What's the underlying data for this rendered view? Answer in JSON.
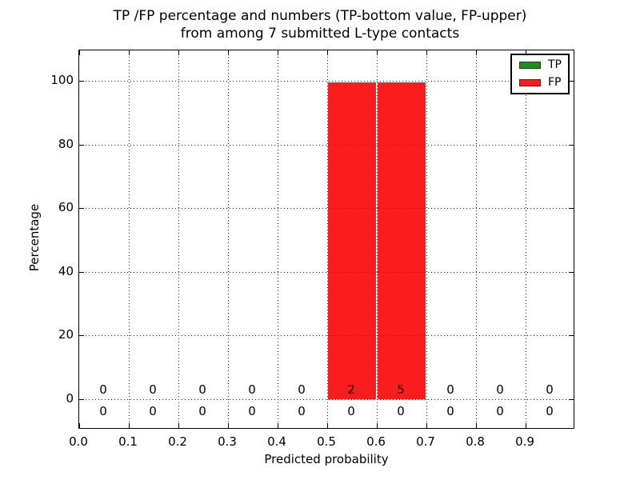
{
  "title": {
    "line1": "TP /FP percentage and numbers (TP-bottom value, FP-upper)",
    "line2": "from among 7 submitted L-type contacts"
  },
  "x_axis": {
    "label": "Predicted probability",
    "ticks": [
      "0.0",
      "0.1",
      "0.2",
      "0.3",
      "0.4",
      "0.5",
      "0.6",
      "0.7",
      "0.8",
      "0.9"
    ]
  },
  "y_axis": {
    "label": "Percentage",
    "ticks": [
      "0",
      "20",
      "40",
      "60",
      "80",
      "100"
    ]
  },
  "legend": {
    "position": "upper right",
    "items": [
      {
        "label": "TP",
        "color": "#228b22"
      },
      {
        "label": "FP",
        "color": "#fa1d1d"
      }
    ]
  },
  "annotations": {
    "fp_counts": [
      "0",
      "0",
      "0",
      "0",
      "0",
      "2",
      "5",
      "0",
      "0",
      "0"
    ],
    "tp_counts": [
      "0",
      "0",
      "0",
      "0",
      "0",
      "0",
      "0",
      "0",
      "0",
      "0"
    ]
  },
  "chart_data": {
    "type": "bar",
    "stacked": true,
    "title": "TP /FP percentage and numbers (TP-bottom value, FP-upper)\nfrom among 7 submitted L-type contacts",
    "xlabel": "Predicted probability",
    "ylabel": "Percentage",
    "xlim": [
      0.0,
      1.0
    ],
    "ylim": [
      -9.5,
      109.5
    ],
    "grid": "dotted, both axes, black",
    "legend_position": "upper right",
    "total_contacts": 7,
    "bin_width": 0.1,
    "bin_edges": [
      0.0,
      0.1,
      0.2,
      0.3,
      0.4,
      0.5,
      0.6,
      0.7,
      0.8,
      0.9,
      1.0
    ],
    "bin_centers": [
      0.05,
      0.15,
      0.25,
      0.35,
      0.45,
      0.55,
      0.65,
      0.75,
      0.85,
      0.95
    ],
    "series": [
      {
        "name": "TP",
        "color": "#228b22",
        "percent": [
          0,
          0,
          0,
          0,
          0,
          0,
          0,
          0,
          0,
          0
        ],
        "counts": [
          0,
          0,
          0,
          0,
          0,
          0,
          0,
          0,
          0,
          0
        ]
      },
      {
        "name": "FP",
        "color": "#fa1d1d",
        "percent": [
          0,
          0,
          0,
          0,
          0,
          99.5,
          99.5,
          0,
          0,
          0
        ],
        "counts": [
          0,
          0,
          0,
          0,
          0,
          2,
          5,
          0,
          0,
          0
        ]
      }
    ]
  }
}
